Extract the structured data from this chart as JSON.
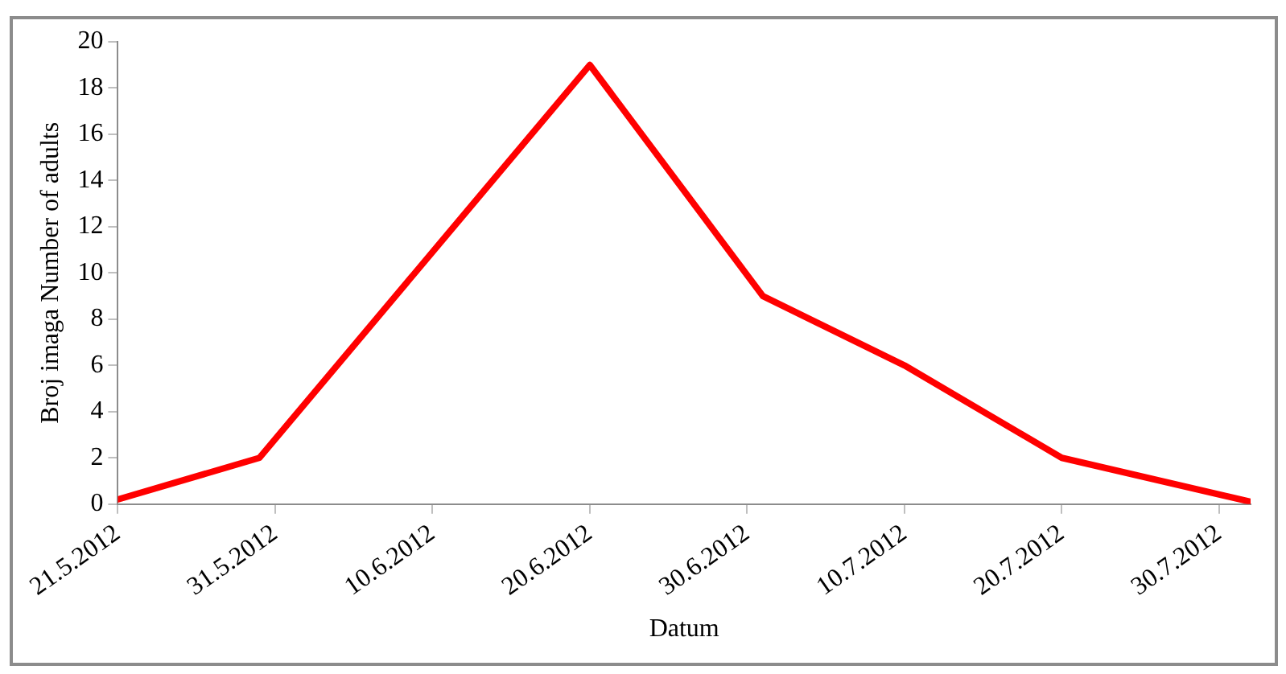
{
  "chart_data": {
    "type": "line",
    "xlabel": "Datum",
    "ylabel": "Broj imaga Number of adults",
    "x": [
      "2012-05-21",
      "2012-05-30",
      "2012-06-20",
      "2012-07-01",
      "2012-07-10",
      "2012-07-20",
      "2012-08-01"
    ],
    "series": [
      {
        "color": "#ff0000",
        "values": [
          0.2,
          2,
          19,
          9,
          6,
          2,
          0.1
        ]
      }
    ],
    "xlim": [
      "2012-05-21",
      "2012-08-01"
    ],
    "xticks": [
      {
        "value": "2012-05-21",
        "label": "21.5.2012"
      },
      {
        "value": "2012-05-31",
        "label": "31.5.2012"
      },
      {
        "value": "2012-06-10",
        "label": "10.6.2012"
      },
      {
        "value": "2012-06-20",
        "label": "20.6.2012"
      },
      {
        "value": "2012-06-30",
        "label": "30.6.2012"
      },
      {
        "value": "2012-07-10",
        "label": "10.7.2012"
      },
      {
        "value": "2012-07-20",
        "label": "20.7.2012"
      },
      {
        "value": "2012-07-30",
        "label": "30.7.2012"
      }
    ],
    "ylim": [
      0,
      20
    ],
    "yticks": [
      0,
      2,
      4,
      6,
      8,
      10,
      12,
      14,
      16,
      18,
      20
    ],
    "grid": false,
    "legend": false,
    "marker": "none",
    "line_style": "solid"
  }
}
